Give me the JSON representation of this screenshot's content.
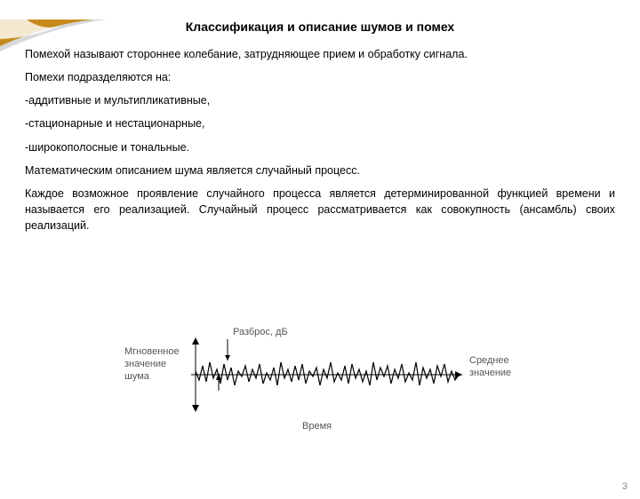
{
  "title": "Классификация и описание шумов и помех",
  "p1": "Помехой называют стороннее колебание, затрудняющее прием и обработку сигнала.",
  "p2": "Помехи подразделяются на:",
  "b1": "-аддитивные и мультипликативные,",
  "b2": "-стационарные и нестационарные,",
  "b3": " -широкополосные и тональные.",
  "p3": "Математическим описанием шума является случайный процесс.",
  "p4": "Каждое возможное проявление случайного процесса является детерминированной функцией времени и называется его реализацией. Случайный процесс рассматривается как совокупность (ансамбль) своих реализаций.",
  "fig": {
    "left_label_l1": "Мгновенное",
    "left_label_l2": "значение",
    "left_label_l3": "шума",
    "top_label": "Разброс, дБ",
    "right_label_l1": "Среднее",
    "right_label_l2": "значение",
    "x_label": "Время",
    "label_color": "#555555",
    "label_fontsize": 11,
    "axis_color": "#000000",
    "signal_color": "#000000",
    "arrow_color": "#000000",
    "background": "#ffffff",
    "signal_points": [
      [
        0,
        4
      ],
      [
        4,
        -6
      ],
      [
        8,
        10
      ],
      [
        12,
        -8
      ],
      [
        16,
        14
      ],
      [
        20,
        -4
      ],
      [
        24,
        6
      ],
      [
        28,
        -10
      ],
      [
        32,
        12
      ],
      [
        36,
        -6
      ],
      [
        40,
        8
      ],
      [
        44,
        -12
      ],
      [
        48,
        4
      ],
      [
        52,
        -2
      ],
      [
        56,
        10
      ],
      [
        60,
        -8
      ],
      [
        64,
        6
      ],
      [
        68,
        -4
      ],
      [
        72,
        12
      ],
      [
        76,
        -10
      ],
      [
        80,
        2
      ],
      [
        84,
        -6
      ],
      [
        88,
        8
      ],
      [
        92,
        -12
      ],
      [
        96,
        14
      ],
      [
        100,
        -4
      ],
      [
        104,
        6
      ],
      [
        108,
        -8
      ],
      [
        112,
        10
      ],
      [
        116,
        -6
      ],
      [
        120,
        12
      ],
      [
        124,
        -10
      ],
      [
        128,
        4
      ],
      [
        132,
        -2
      ],
      [
        136,
        8
      ],
      [
        140,
        -12
      ],
      [
        144,
        6
      ],
      [
        148,
        -4
      ],
      [
        152,
        14
      ],
      [
        156,
        -8
      ],
      [
        160,
        2
      ],
      [
        164,
        -6
      ],
      [
        168,
        10
      ],
      [
        172,
        -10
      ],
      [
        176,
        12
      ],
      [
        180,
        -4
      ],
      [
        184,
        6
      ],
      [
        188,
        -8
      ],
      [
        192,
        4
      ],
      [
        196,
        -12
      ],
      [
        200,
        14
      ],
      [
        204,
        -6
      ],
      [
        208,
        8
      ],
      [
        212,
        -2
      ],
      [
        216,
        10
      ],
      [
        220,
        -10
      ],
      [
        224,
        6
      ],
      [
        228,
        -4
      ],
      [
        232,
        12
      ],
      [
        236,
        -8
      ],
      [
        240,
        2
      ],
      [
        244,
        -6
      ],
      [
        248,
        14
      ],
      [
        252,
        -12
      ],
      [
        256,
        8
      ],
      [
        260,
        -4
      ],
      [
        264,
        6
      ],
      [
        268,
        -10
      ],
      [
        272,
        10
      ],
      [
        276,
        -2
      ],
      [
        280,
        12
      ],
      [
        284,
        -8
      ],
      [
        288,
        4
      ],
      [
        292,
        -6
      ],
      [
        296,
        0
      ]
    ]
  },
  "page_number": "3",
  "corner": {
    "gold": "#c68a1c",
    "grey": "#d7d9db"
  }
}
